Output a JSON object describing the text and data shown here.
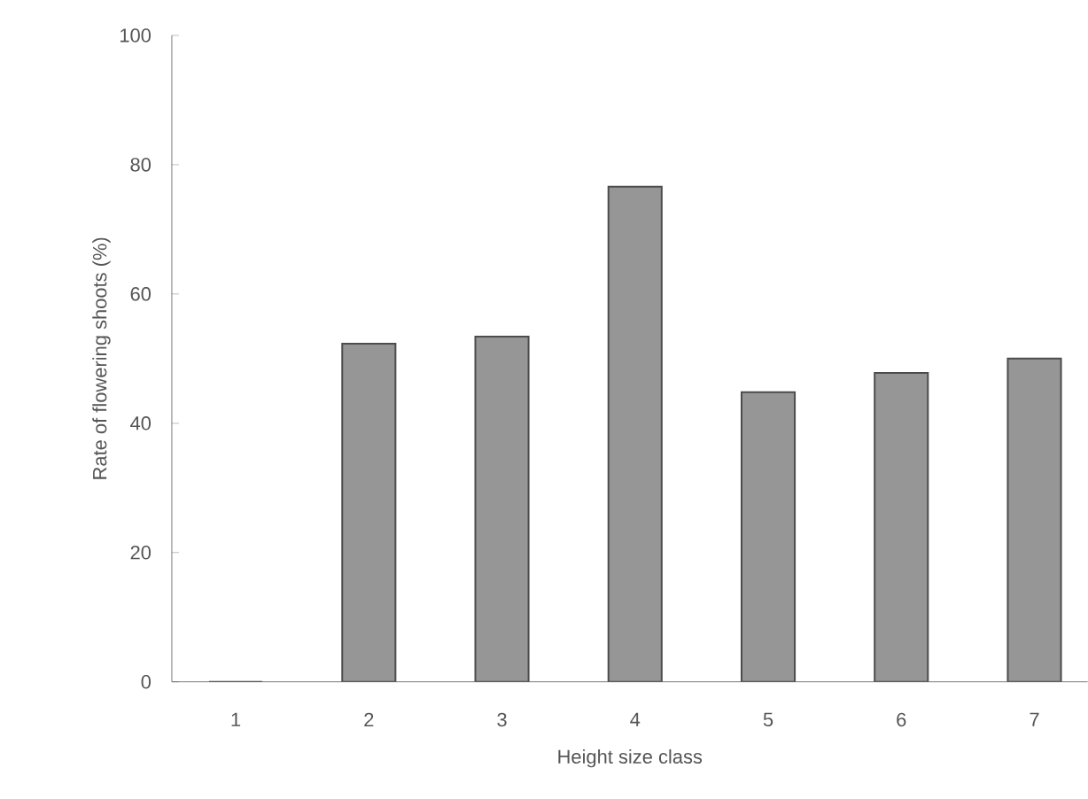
{
  "chart_data": {
    "type": "bar",
    "xlabel": "Height size class",
    "ylabel": "Rate of flowering shoots (%)",
    "categories": [
      "1",
      "2",
      "3",
      "4",
      "5",
      "6",
      "7"
    ],
    "values": [
      0,
      52.3,
      53.4,
      76.6,
      44.8,
      47.8,
      50.0
    ],
    "color": "#969696",
    "ylim": [
      0,
      100
    ],
    "yticks": [
      0,
      20,
      40,
      60,
      80,
      100
    ],
    "grid": false
  }
}
